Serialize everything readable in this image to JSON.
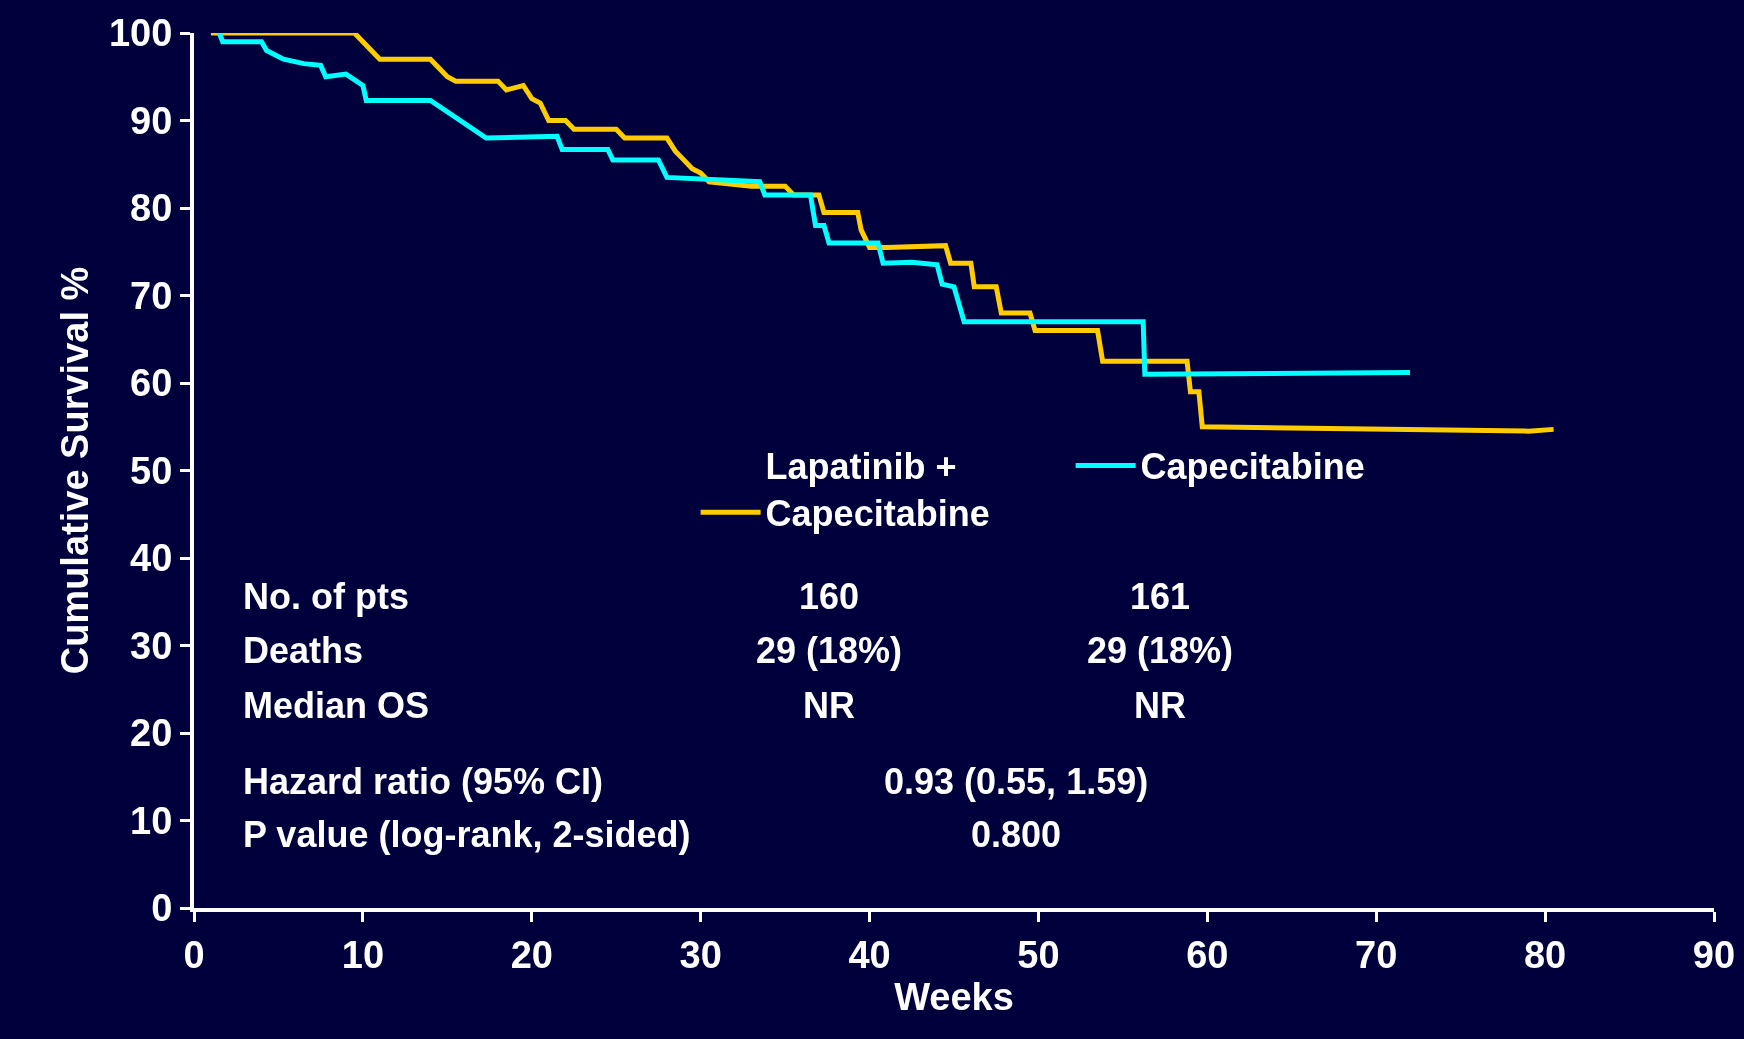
{
  "chart_data": {
    "type": "line",
    "xlabel": "Weeks",
    "ylabel": "Cumulative Survival %",
    "xlim": [
      0,
      90
    ],
    "xticks": [
      0,
      10,
      20,
      30,
      40,
      50,
      60,
      70,
      80,
      90
    ],
    "ylim": [
      0,
      100
    ],
    "legend": "bottom",
    "yticks": [
      0,
      10,
      20,
      30,
      40,
      50,
      60,
      70,
      80,
      90,
      100
    ],
    "grid": false,
    "marker": "none",
    "line_style": "solid",
    "series": [
      {
        "name": "Lapatinib +\nCapecitabine",
        "color": "#ffcc00",
        "x": [
          1,
          9.5,
          10,
          10.5,
          11,
          14,
          14.5,
          15,
          15.5,
          18,
          18.5,
          19.5,
          20,
          20.5,
          21,
          22,
          22.5,
          25,
          25.5,
          28,
          28.5,
          29,
          29.5,
          30,
          30.5,
          33,
          35,
          35.5,
          37,
          37.3,
          39.3,
          39.5,
          40,
          41,
          44.5,
          44.8,
          46,
          46.2,
          47.5,
          47.8,
          49.5,
          49.8,
          53.5,
          53.8,
          58.8,
          59,
          59.5,
          59.7,
          79,
          80.5
        ],
        "values": [
          100,
          100,
          99,
          98,
          97,
          97,
          96,
          95,
          94.5,
          94.5,
          93.5,
          94,
          92.5,
          92,
          90,
          90,
          89,
          89,
          88,
          88,
          86.5,
          85.5,
          84.5,
          84,
          83,
          82.5,
          82.5,
          81.5,
          81.5,
          79.5,
          79.5,
          77.5,
          75.5,
          75.5,
          75.7,
          73.7,
          73.7,
          71,
          71,
          68,
          68,
          66,
          66,
          62.5,
          62.5,
          59,
          59,
          55,
          54.5,
          54.7
        ]
      },
      {
        "name": "Capecitabine",
        "color": "#00ffff",
        "x": [
          1.5,
          1.7,
          4,
          4.3,
          5.3,
          6.5,
          7.5,
          7.8,
          9,
          10,
          10.2,
          14,
          17.3,
          21.5,
          21.8,
          24.5,
          24.8,
          27.5,
          28,
          33.5,
          33.8,
          36.5,
          36.8,
          37.3,
          37.6,
          40.5,
          40.8,
          42.5,
          44,
          44.3,
          45,
          45.3,
          45.6,
          56.2,
          56.3,
          72
        ],
        "values": [
          100,
          99,
          99,
          98,
          97,
          96.5,
          96.3,
          95,
          95.3,
          94,
          92.3,
          92.3,
          88,
          88.2,
          86.7,
          86.7,
          85.5,
          85.5,
          83.5,
          83,
          81.5,
          81.5,
          78,
          78,
          76,
          76,
          73.7,
          73.8,
          73.5,
          71.3,
          71,
          69,
          67,
          67,
          61,
          61.2
        ]
      }
    ],
    "annotations": [
      "No. of pts",
      "160",
      "161",
      "Deaths",
      "29 (18%)",
      "29 (18%)",
      "Median OS",
      "NR",
      "NR",
      "Hazard ratio (95% CI)",
      "0.93 (0.55, 1.59)",
      "P value (log-rank, 2-sided)",
      "0.800"
    ]
  }
}
